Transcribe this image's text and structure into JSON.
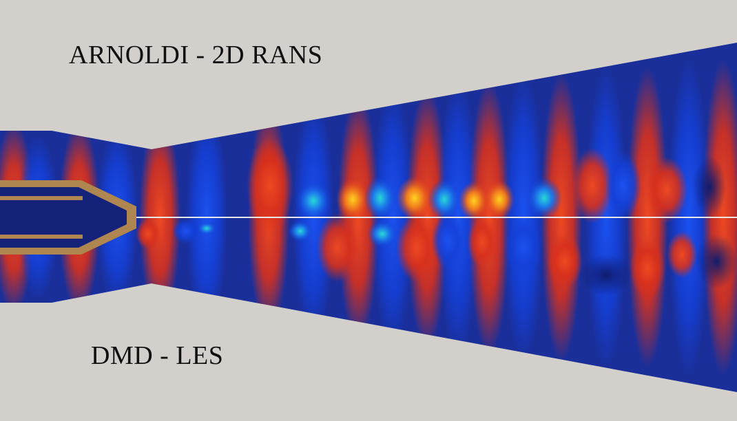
{
  "labels": {
    "top": "ARNOLDI - 2D RANS",
    "bottom": "DMD - LES"
  },
  "colors": {
    "background": "#d3d0cb",
    "field_base": "#1a2f9a",
    "positive_strong": "#e03a1e",
    "positive_peak": "#f5c21c",
    "negative_strong": "#1440d8",
    "negative_peak": "#22c8d0",
    "centerline": "#e8e8e8",
    "nozzle_wall": "#b08650",
    "nozzle_interior": "#14227a"
  },
  "icons": [
    "nozzle-shape",
    "jet-mode-field"
  ]
}
